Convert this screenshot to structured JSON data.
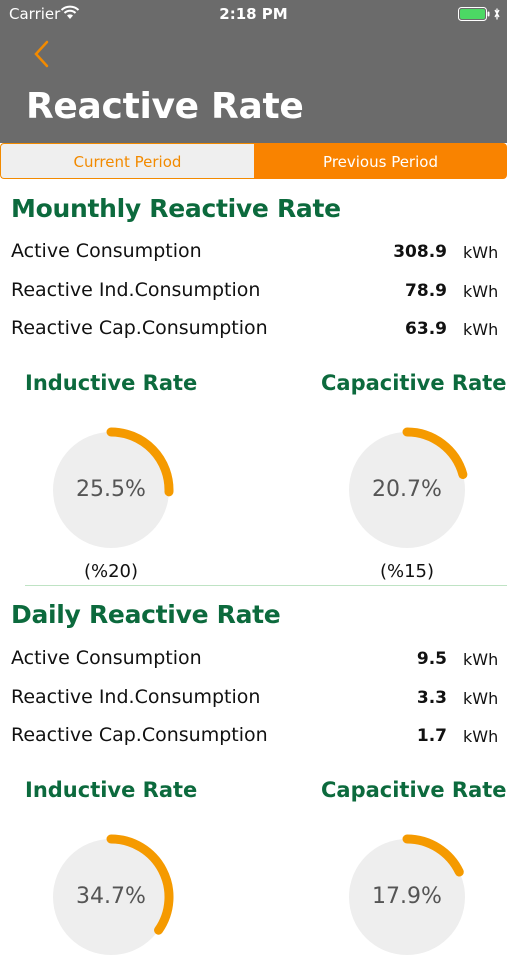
{
  "status": {
    "carrier": "Carrier",
    "time": "2:18 PM"
  },
  "header": {
    "title": "Reactive Rate"
  },
  "tabs": {
    "current": "Current Period",
    "previous": "Previous Period"
  },
  "colors": {
    "accent": "#f98300",
    "green": "#0c6a3d",
    "header_bg": "#6b6b6b",
    "gauge_track": "#eeeeee"
  },
  "monthly": {
    "title": "Mounthly Reactive Rate",
    "rows": [
      {
        "label": "Active Consumption",
        "value": "308.9",
        "unit": "kWh"
      },
      {
        "label": "Reactive Ind.Consumption",
        "value": "78.9",
        "unit": "kWh"
      },
      {
        "label": "Reactive Cap.Consumption",
        "value": "63.9",
        "unit": "kWh"
      }
    ],
    "inductive": {
      "title": "Inductive Rate",
      "value": "25.5%",
      "limit": "(%20)",
      "percent": 25.5
    },
    "capacitive": {
      "title": "Capacitive Rate",
      "value": "20.7%",
      "limit": "(%15)",
      "percent": 20.7
    }
  },
  "daily": {
    "title": "Daily Reactive Rate",
    "rows": [
      {
        "label": "Active Consumption",
        "value": "9.5",
        "unit": "kWh"
      },
      {
        "label": "Reactive Ind.Consumption",
        "value": "3.3",
        "unit": "kWh"
      },
      {
        "label": "Reactive Cap.Consumption",
        "value": "1.7",
        "unit": "kWh"
      }
    ],
    "inductive": {
      "title": "Inductive Rate",
      "value": "34.7%",
      "percent": 34.7
    },
    "capacitive": {
      "title": "Capacitive Rate",
      "value": "17.9%",
      "percent": 17.9
    }
  }
}
